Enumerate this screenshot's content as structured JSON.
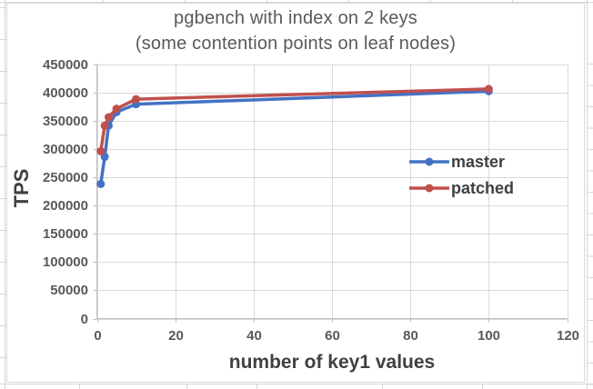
{
  "chart_data": {
    "type": "line",
    "title": "pgbench with index on 2 keys",
    "subtitle": "(some contention points on leaf nodes)",
    "xlabel": "number of key1 values",
    "ylabel": "TPS",
    "xlim": [
      0,
      120
    ],
    "ylim": [
      0,
      450000
    ],
    "x_ticks": [
      0,
      20,
      40,
      60,
      80,
      100,
      120
    ],
    "y_ticks": [
      0,
      50000,
      100000,
      150000,
      200000,
      250000,
      300000,
      350000,
      400000,
      450000
    ],
    "grid": "both",
    "legend_position": "center-right-inside",
    "x": [
      1,
      2,
      3,
      5,
      10,
      100
    ],
    "series": [
      {
        "name": "master",
        "color": "#4472C4",
        "values": [
          238000,
          286000,
          341000,
          365000,
          379000,
          402000
        ]
      },
      {
        "name": "patched",
        "color": "#C0504D",
        "values": [
          296000,
          341000,
          356000,
          371000,
          388000,
          406000
        ]
      }
    ]
  },
  "colors": {
    "title_text": "#595959",
    "axis_title_text": "#404040",
    "tick_text": "#595959",
    "gridline": "#D9D9D9",
    "axis_line": "#BFBFBF",
    "spreadsheet_gridline": "#D6D6D6",
    "chart_background": "#FFFFFF"
  }
}
